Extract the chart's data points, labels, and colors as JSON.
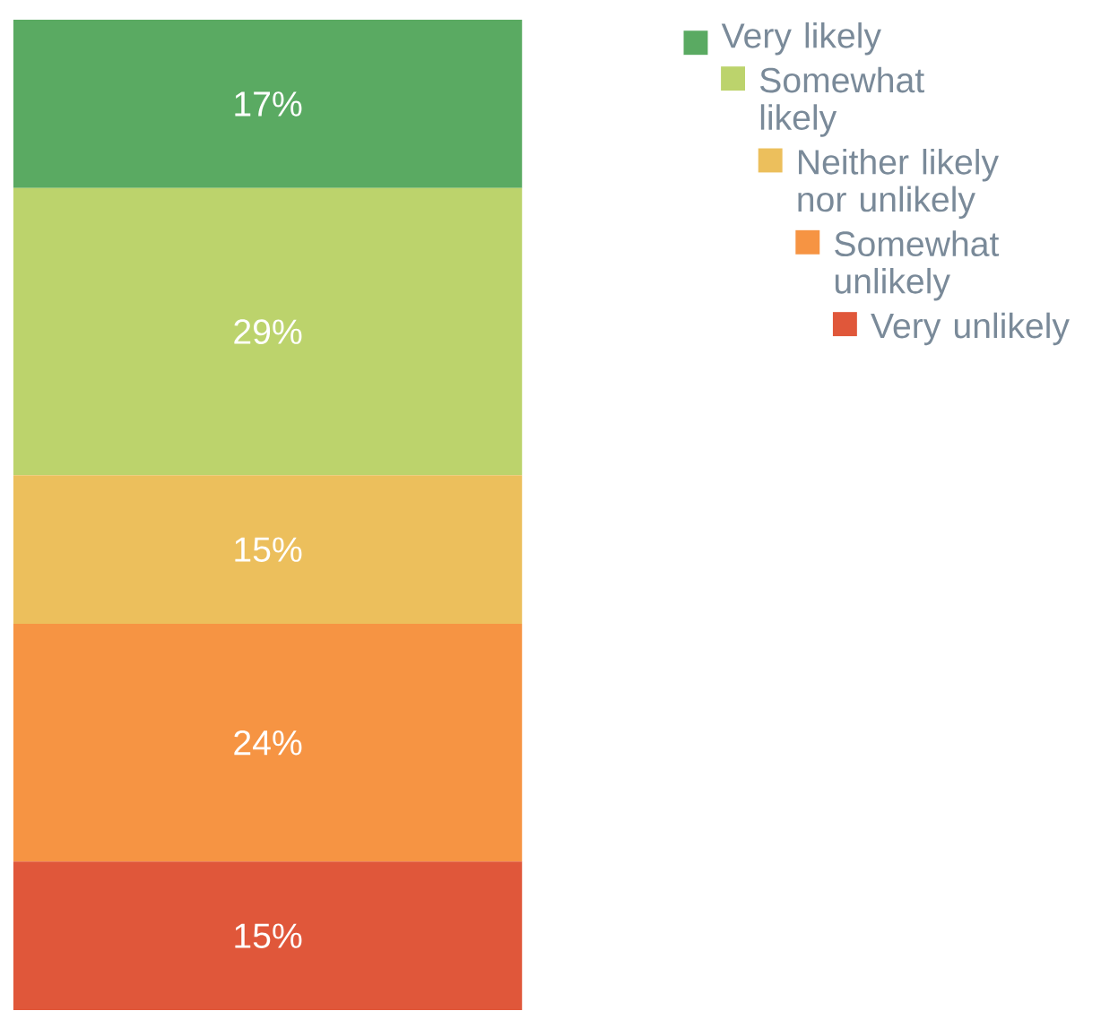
{
  "chart_data": {
    "type": "bar",
    "stacked": true,
    "categories": [
      null
    ],
    "legend": "top right",
    "data_labels": true,
    "series": [
      {
        "name": "Very unlikely",
        "color": "#e0573a",
        "values": [
          15
        ],
        "value_labels": [
          "15%"
        ]
      },
      {
        "name": "Somewhat unlikely",
        "color": "#f69443",
        "values": [
          24
        ],
        "value_labels": [
          "24%"
        ]
      },
      {
        "name": "Neither likely nor unlikely",
        "color": "#ecbf5c",
        "values": [
          15
        ],
        "value_labels": [
          "15%"
        ]
      },
      {
        "name": "Somewhat likely",
        "color": "#bcd36c",
        "values": [
          29
        ],
        "value_labels": [
          "29%"
        ]
      },
      {
        "name": "Very likely",
        "color": "#5aaa62",
        "values": [
          17
        ],
        "value_labels": [
          "17%"
        ]
      }
    ]
  }
}
